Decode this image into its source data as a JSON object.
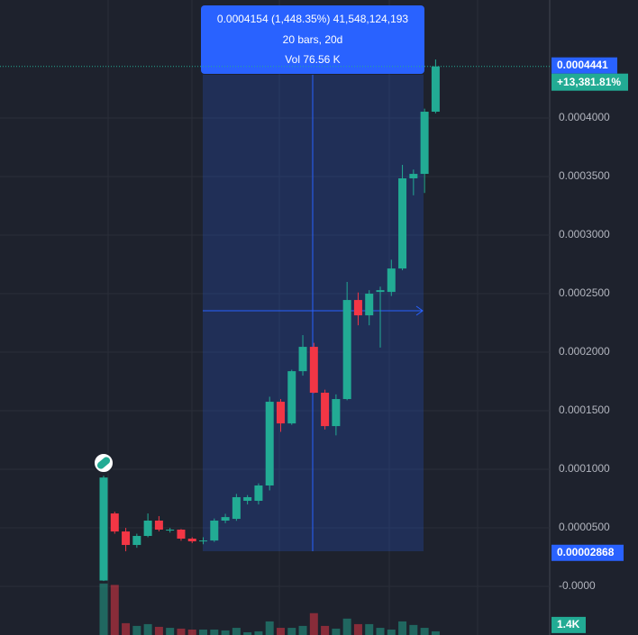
{
  "chart_data": {
    "type": "candlestick",
    "up_color": "#22ab94",
    "down_color": "#f23645",
    "ylim": [
      -4.15e-05,
      0.0005008
    ],
    "yticks": [
      {
        "value": 0,
        "label": "-0.0000"
      },
      {
        "value": 5e-05,
        "label": "0.0000500"
      },
      {
        "value": 0.0001,
        "label": "0.0001000"
      },
      {
        "value": 0.00015,
        "label": "0.0001500"
      },
      {
        "value": 0.0002,
        "label": "0.0002000"
      },
      {
        "value": 0.00025,
        "label": "0.0002500"
      },
      {
        "value": 0.0003,
        "label": "0.0003000"
      },
      {
        "value": 0.00035,
        "label": "0.0003500"
      },
      {
        "value": 0.0004,
        "label": "0.0004000"
      }
    ],
    "grid": true,
    "open": [
      5e-06,
      6.23e-05,
      4.69e-05,
      3.54e-05,
      4.31e-05,
      5.62e-05,
      4.77e-05,
      4.85e-05,
      4.08e-05,
      3.85e-05,
      3.92e-05,
      5.62e-05,
      5.77e-05,
      7.31e-05,
      7.31e-05,
      8.62e-05,
      0.0001577,
      0.0001392,
      0.0001838,
      0.0002046,
      0.0001654,
      0.0001369,
      0.00016,
      0.0002446,
      0.0002315,
      0.0002515,
      0.0002515,
      0.0002715,
      0.0003485,
      0.0003523,
      0.0004054
    ],
    "high": [
      9.46e-05,
      6.38e-05,
      5e-05,
      4.5e-05,
      6.23e-05,
      6e-05,
      5e-05,
      4.9e-05,
      4.2e-05,
      4.2e-05,
      5.8e-05,
      6.2e-05,
      7.9e-05,
      7.8e-05,
      8.8e-05,
      0.000162,
      0.00016,
      0.000185,
      0.0002146,
      0.000208,
      0.000168,
      0.000164,
      0.00026,
      0.000251,
      0.000253,
      0.000256,
      0.000279,
      0.00036,
      0.000356,
      0.000408,
      0.00045
    ],
    "low": [
      4.6e-06,
      4.5e-05,
      3e-05,
      3.3e-05,
      4.2e-05,
      4.7e-05,
      4.6e-05,
      3.9e-05,
      3.7e-05,
      3.6e-05,
      3.8e-05,
      5.4e-05,
      5.6e-05,
      7e-05,
      7e-05,
      8.2e-05,
      0.000132,
      0.000138,
      0.00018,
      0.000165,
      0.000134,
      0.000129,
      0.000159,
      0.000223,
      0.000223,
      0.000204,
      0.000248,
      0.00027,
      0.000334,
      0.000336,
      0.000404
    ],
    "close": [
      9.3e-05,
      4.69e-05,
      3.54e-05,
      4.31e-05,
      5.62e-05,
      4.85e-05,
      4.85e-05,
      4.08e-05,
      3.85e-05,
      3.92e-05,
      5.62e-05,
      5.92e-05,
      7.62e-05,
      7.62e-05,
      8.62e-05,
      0.0001577,
      0.0001392,
      0.0001838,
      0.0002046,
      0.0001654,
      0.0001369,
      0.00016,
      0.0002446,
      0.0002315,
      0.00025,
      0.000253,
      0.0002715,
      0.0003485,
      0.0003523,
      0.0004054,
      0.0004441
    ],
    "volume": [
      7200,
      7000,
      1650,
      1270,
      1520,
      1140,
      1000,
      890,
      760,
      760,
      760,
      640,
      1000,
      380,
      510,
      1900,
      1000,
      1000,
      1270,
      3050,
      1270,
      890,
      2290,
      1520,
      1520,
      1000,
      760,
      1900,
      1400,
      1000,
      510
    ],
    "volume_ylim": [
      0,
      7300
    ],
    "volume_axis_label": {
      "value": 1400,
      "label": "1.4K"
    },
    "last_price": {
      "value": 0.0004441,
      "label": "0.0004441"
    },
    "change_label": "+13,381.81%",
    "crosshair_price": {
      "value": 2.868e-05,
      "label": "0.00002868"
    },
    "measure": {
      "price_text": "0.0004154 (1,448.35%) 41,548,124,193",
      "bars_text": "20 bars, 20d",
      "volume_text": "Vol 76.56 K"
    }
  }
}
